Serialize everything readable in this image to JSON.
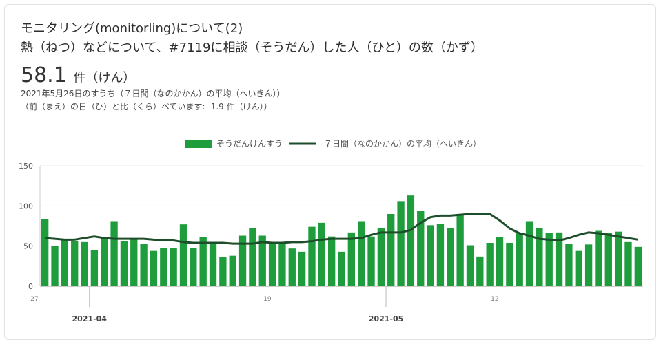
{
  "header": {
    "title": "モニタリング(monitorling)について(2)",
    "subtitle": "熱（ねつ）などについて、#7119に相談（そうだん）した人（ひと）の数（かず）"
  },
  "summary": {
    "value": "58.1",
    "unit": "件（けん）",
    "note_line1": "2021年5月26日のすうち（７日間（なのかかん）の平均（へいきん））",
    "note_line2": "（前（まえ）の日（ひ）と比（くら）べています: -1.9 件（けん））"
  },
  "colors": {
    "bar": "#1f9d3d",
    "line": "#1e4d2b",
    "grid": "#e8e8e8",
    "axis": "#777777"
  },
  "chart_data": {
    "type": "bar",
    "legend_position": "top-center",
    "grid": true,
    "ylim": [
      0,
      150
    ],
    "yticks": [
      0,
      50,
      100,
      150
    ],
    "x_tick_labels": [
      "27",
      "19",
      "12"
    ],
    "x_month_labels": [
      "2021-04",
      "2021-05"
    ],
    "x_start": "2021-03-27",
    "x_end": "2021-05-26",
    "dates": [
      "2021-03-27",
      "2021-03-28",
      "2021-03-29",
      "2021-03-30",
      "2021-03-31",
      "2021-04-01",
      "2021-04-02",
      "2021-04-03",
      "2021-04-04",
      "2021-04-05",
      "2021-04-06",
      "2021-04-07",
      "2021-04-08",
      "2021-04-09",
      "2021-04-10",
      "2021-04-11",
      "2021-04-12",
      "2021-04-13",
      "2021-04-14",
      "2021-04-15",
      "2021-04-16",
      "2021-04-17",
      "2021-04-18",
      "2021-04-19",
      "2021-04-20",
      "2021-04-21",
      "2021-04-22",
      "2021-04-23",
      "2021-04-24",
      "2021-04-25",
      "2021-04-26",
      "2021-04-27",
      "2021-04-28",
      "2021-04-29",
      "2021-04-30",
      "2021-05-01",
      "2021-05-02",
      "2021-05-03",
      "2021-05-04",
      "2021-05-05",
      "2021-05-06",
      "2021-05-07",
      "2021-05-08",
      "2021-05-09",
      "2021-05-10",
      "2021-05-11",
      "2021-05-12",
      "2021-05-13",
      "2021-05-14",
      "2021-05-15",
      "2021-05-16",
      "2021-05-17",
      "2021-05-18",
      "2021-05-19",
      "2021-05-20",
      "2021-05-21",
      "2021-05-22",
      "2021-05-23",
      "2021-05-24",
      "2021-05-25",
      "2021-05-26"
    ],
    "series": [
      {
        "name": "そうだんけんすう",
        "kind": "bar",
        "values": [
          84,
          50,
          57,
          56,
          55,
          45,
          61,
          81,
          56,
          59,
          53,
          44,
          48,
          48,
          77,
          48,
          61,
          55,
          36,
          38,
          63,
          72,
          63,
          54,
          53,
          47,
          43,
          74,
          79,
          62,
          43,
          67,
          81,
          62,
          72,
          90,
          106,
          113,
          94,
          76,
          78,
          72,
          90,
          51,
          37,
          54,
          61,
          54,
          66,
          81,
          72,
          66,
          67,
          53,
          44,
          52,
          69,
          66,
          68,
          55,
          49
        ]
      },
      {
        "name": "７日間（なのかかん）の平均（へいきん）",
        "kind": "line",
        "values": [
          60,
          59,
          58,
          58,
          60,
          62,
          60,
          59,
          59,
          59,
          59,
          58,
          57,
          57,
          55,
          54,
          54,
          54,
          54,
          53,
          53,
          53,
          55,
          54,
          54,
          55,
          55,
          56,
          58,
          59,
          59,
          59,
          60,
          64,
          67,
          67,
          67,
          70,
          79,
          86,
          88,
          88,
          89,
          90,
          90,
          90,
          82,
          72,
          66,
          63,
          59,
          58,
          57,
          60,
          64,
          67,
          66,
          64,
          62,
          60,
          58
        ]
      }
    ]
  }
}
